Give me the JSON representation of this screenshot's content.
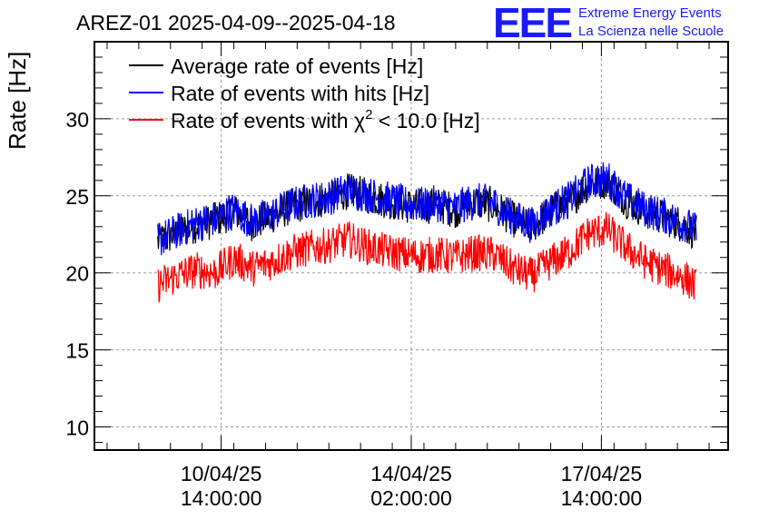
{
  "chart_data": {
    "type": "line",
    "title": "AREZ-01 2025-04-09--2025-04-18",
    "ylabel": "Rate [Hz]",
    "xlabel": "",
    "ylim": [
      8.5,
      35
    ],
    "xlim_days": [
      0,
      10.0
    ],
    "grid": true,
    "legend_position": "top-left",
    "y_ticks": [
      10,
      15,
      20,
      25,
      30
    ],
    "y_tick_labels": [
      "10",
      "15",
      "20",
      "25",
      "30"
    ],
    "x_ticks": [
      {
        "day": 2.0,
        "label_date": "10/04/25",
        "label_time": "14:00:00"
      },
      {
        "day": 5.0,
        "label_date": "14/04/25",
        "label_time": "02:00:00"
      },
      {
        "day": 8.0,
        "label_date": "17/04/25",
        "label_time": "14:00:00"
      }
    ],
    "legend": [
      {
        "name": "Average rate of events [Hz]",
        "color": "#000000"
      },
      {
        "name": "Rate of events with hits [Hz]",
        "color": "#0000ff"
      },
      {
        "name_prefix": "Rate of events with ",
        "name_symbol": "χ",
        "name_sup": "2",
        "name_suffix": " < 10.0 [Hz]",
        "color": "#ff0000"
      }
    ],
    "series": [
      {
        "name": "Average rate of events [Hz]",
        "color": "#000000",
        "x": [
          1.0,
          1.3,
          1.6,
          1.9,
          2.2,
          2.5,
          2.8,
          3.1,
          3.4,
          3.7,
          4.0,
          4.3,
          4.6,
          4.9,
          5.1,
          5.4,
          5.7,
          6.0,
          6.3,
          6.6,
          6.9,
          7.2,
          7.5,
          7.8,
          8.1,
          8.4,
          8.7,
          9.0,
          9.3,
          9.5
        ],
        "values": [
          22.0,
          22.6,
          23.1,
          23.4,
          24.0,
          23.2,
          23.7,
          24.3,
          24.6,
          24.8,
          25.3,
          25.0,
          24.7,
          24.4,
          24.3,
          24.4,
          24.1,
          24.6,
          24.4,
          23.5,
          23.0,
          24.0,
          24.7,
          25.8,
          26.0,
          24.7,
          24.0,
          23.6,
          23.1,
          22.6
        ]
      },
      {
        "name": "Rate of events with hits [Hz]",
        "color": "#0000ff",
        "x": [
          1.0,
          1.3,
          1.6,
          1.9,
          2.2,
          2.5,
          2.8,
          3.1,
          3.4,
          3.7,
          4.0,
          4.3,
          4.6,
          4.9,
          5.1,
          5.4,
          5.7,
          6.0,
          6.3,
          6.6,
          6.9,
          7.2,
          7.5,
          7.8,
          8.1,
          8.4,
          8.7,
          9.0,
          9.3,
          9.5
        ],
        "values": [
          22.1,
          22.7,
          23.2,
          23.5,
          24.1,
          23.3,
          23.8,
          24.4,
          24.7,
          24.9,
          25.4,
          25.1,
          24.8,
          24.5,
          24.4,
          24.5,
          24.2,
          24.7,
          24.5,
          23.6,
          23.1,
          24.1,
          24.8,
          25.9,
          26.1,
          24.8,
          24.1,
          23.7,
          23.2,
          22.7
        ]
      },
      {
        "name": "Rate of events with χ2 < 10.0 [Hz]",
        "color": "#ff0000",
        "x": [
          1.0,
          1.3,
          1.6,
          1.9,
          2.2,
          2.5,
          2.8,
          3.1,
          3.4,
          3.7,
          4.0,
          4.3,
          4.6,
          4.9,
          5.1,
          5.4,
          5.7,
          6.0,
          6.3,
          6.6,
          6.9,
          7.2,
          7.5,
          7.8,
          8.1,
          8.4,
          8.7,
          9.0,
          9.3,
          9.5
        ],
        "values": [
          19.2,
          19.8,
          20.2,
          20.0,
          20.9,
          20.3,
          20.7,
          21.3,
          21.6,
          21.8,
          22.2,
          21.7,
          21.4,
          21.2,
          21.1,
          21.2,
          21.0,
          21.3,
          21.2,
          20.3,
          19.8,
          20.7,
          21.4,
          22.6,
          22.8,
          21.6,
          20.7,
          20.2,
          19.7,
          19.1
        ]
      }
    ]
  },
  "logo": {
    "text": "EEE",
    "line1": "Extreme Energy Events",
    "line2": "La Scienza nelle Scuole",
    "color": "#1a1aff"
  }
}
